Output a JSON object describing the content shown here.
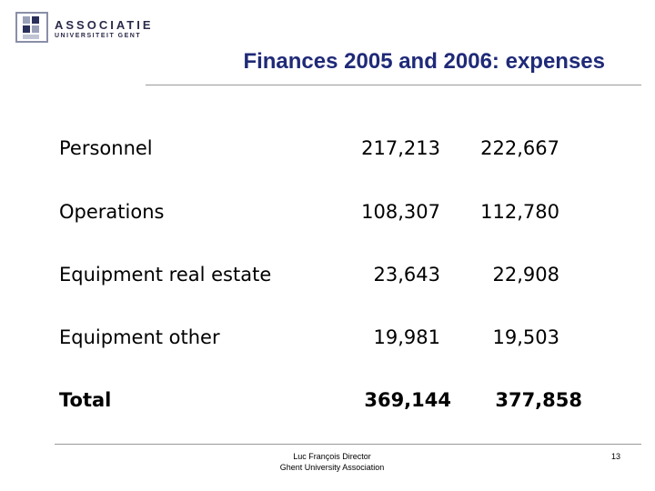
{
  "header": {
    "logo": {
      "line1": "ASSOCIATIE",
      "line2": "UNIVERSITEIT GENT"
    },
    "title": "Finances 2005 and 2006: expenses"
  },
  "table": {
    "rows": [
      [
        "Personnel",
        "217,213",
        "222,667"
      ],
      [
        "Operations",
        "108,307",
        "112,780"
      ],
      [
        "Equipment real estate",
        "23,643",
        "22,908"
      ],
      [
        "Equipment other",
        "19,981",
        "19,503"
      ],
      [
        "Total",
        "369,144",
        "377,858"
      ]
    ]
  },
  "footer": {
    "author": "Luc François Director",
    "organization": "Ghent University Association",
    "page": "13"
  }
}
